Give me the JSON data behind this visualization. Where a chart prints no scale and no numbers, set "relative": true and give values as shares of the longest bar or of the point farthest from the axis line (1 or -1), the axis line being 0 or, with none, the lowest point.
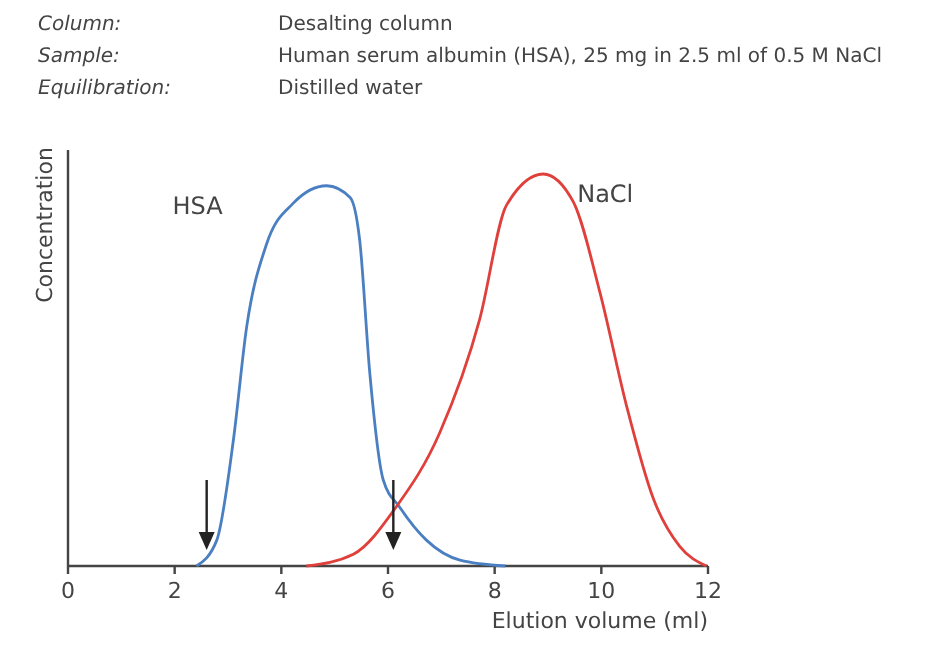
{
  "chart_data": {
    "type": "line",
    "relative": true,
    "xlabel": "Elution volume (ml)",
    "ylabel": "Concentration",
    "xlim": [
      0,
      12
    ],
    "xticks": [
      0,
      2,
      4,
      6,
      8,
      10,
      12
    ],
    "grid": false,
    "marker": "none",
    "line_style": "solid",
    "annotations": [
      "Column:",
      "Desalting column",
      "Sample:",
      "Human serum albumin (HSA), 25 mg in 2.5 ml of 0.5 M NaCl",
      "Equilibration:",
      "Distilled water"
    ],
    "series": [
      {
        "name": "HSA",
        "color": "#4a7fc1",
        "x": [
          2.41,
          2.79,
          3.1,
          3.35,
          3.72,
          4.22,
          4.85,
          5.29,
          5.47,
          5.66,
          5.91,
          6.22,
          6.72,
          7.35,
          8.2
        ],
        "values": [
          0,
          0.066,
          0.32,
          0.61,
          0.82,
          0.925,
          0.97,
          0.94,
          0.83,
          0.49,
          0.22,
          0.15,
          0.066,
          0.015,
          0
        ]
      },
      {
        "name": "NaCl",
        "color": "#e0403c",
        "x": [
          4.47,
          5.35,
          6.15,
          6.97,
          7.72,
          8.22,
          8.91,
          9.47,
          9.97,
          10.47,
          10.98,
          11.47,
          11.97
        ],
        "values": [
          0,
          0.03,
          0.15,
          0.34,
          0.63,
          0.92,
          1,
          0.93,
          0.7,
          0.41,
          0.17,
          0.05,
          0
        ]
      }
    ]
  }
}
